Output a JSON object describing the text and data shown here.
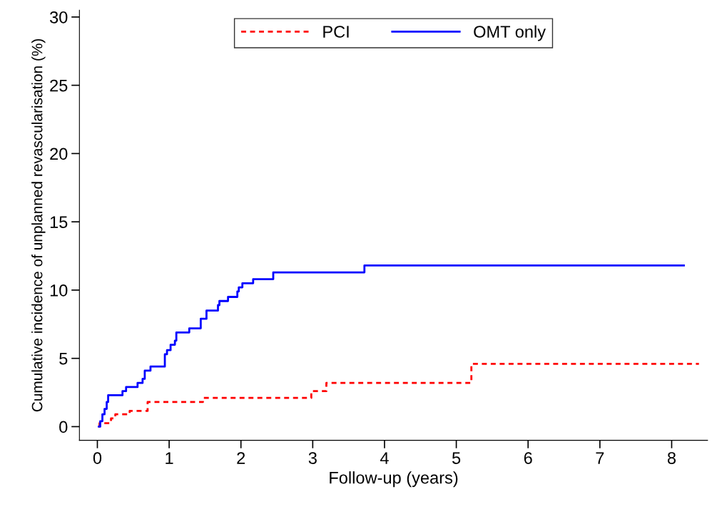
{
  "chart_data": {
    "type": "step",
    "xlabel": "Follow-up (years)",
    "ylabel": "Cumulative incidence of unplanned revascularisation (%)",
    "xlim": [
      -0.25,
      8.5
    ],
    "ylim": [
      -1,
      30.5
    ],
    "xticks": [
      0,
      1,
      2,
      3,
      4,
      5,
      6,
      7,
      8
    ],
    "yticks": [
      0,
      5,
      10,
      15,
      20,
      25,
      30
    ],
    "grid": false,
    "legend": "top",
    "series": [
      {
        "name": "PCI",
        "color": "#ff0000",
        "line_style": "dashed",
        "x": [
          0.02,
          0.03,
          0.19,
          0.25,
          0.45,
          0.7,
          1.47,
          2.98,
          3.19,
          5.21,
          8.38
        ],
        "values": [
          0,
          0.25,
          0.6,
          0.9,
          1.15,
          1.8,
          2.1,
          2.6,
          3.2,
          4.6,
          4.6
        ]
      },
      {
        "name": "OMT only",
        "color": "#0000ff",
        "line_style": "solid",
        "x": [
          0.02,
          0.04,
          0.07,
          0.1,
          0.13,
          0.15,
          0.35,
          0.4,
          0.56,
          0.63,
          0.66,
          0.74,
          0.94,
          0.97,
          1.02,
          1.08,
          1.1,
          1.28,
          1.44,
          1.52,
          1.68,
          1.7,
          1.82,
          1.95,
          1.97,
          2.02,
          2.17,
          2.45,
          3.72,
          8.17
        ],
        "values": [
          0,
          0.4,
          0.9,
          1.3,
          1.8,
          2.3,
          2.6,
          2.9,
          3.2,
          3.5,
          4.1,
          4.4,
          5.3,
          5.6,
          6.0,
          6.3,
          6.9,
          7.2,
          7.9,
          8.5,
          8.9,
          9.2,
          9.5,
          9.9,
          10.2,
          10.5,
          10.8,
          11.3,
          11.8,
          11.8
        ]
      }
    ]
  }
}
